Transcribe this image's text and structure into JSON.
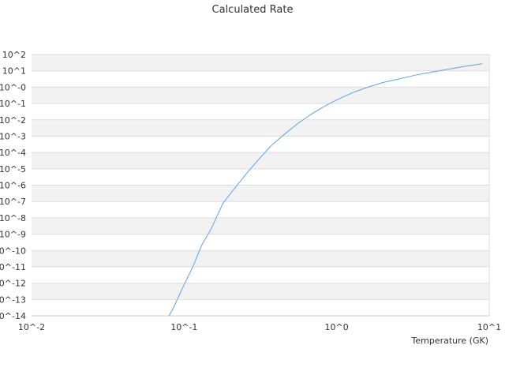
{
  "chart_data": {
    "type": "line",
    "title": "Calculated Rate",
    "xlabel": "Temperature (GK)",
    "ylabel": "",
    "x_scale": "log",
    "y_scale": "log",
    "xlim": [
      0.01,
      10
    ],
    "ylim": [
      1e-14,
      100
    ],
    "x_tick_values": [
      0.01,
      0.1,
      1,
      10
    ],
    "x_tick_labels": [
      "10^-2",
      "10^-1",
      "10^0",
      "10^1"
    ],
    "y_tick_values": [
      100,
      10,
      1,
      0.1,
      0.01,
      0.001,
      0.0001,
      1e-05,
      1e-06,
      1e-07,
      1e-08,
      1e-09,
      1e-10,
      1e-11,
      1e-12,
      1e-13,
      1e-14
    ],
    "y_tick_labels": [
      "10^2",
      "10^1",
      "10^-0",
      "10^-1",
      "10^-2",
      "10^-3",
      "10^-4",
      "10^-5",
      "10^-6",
      "10^-7",
      "10^-8",
      "10^-9",
      "10^-10",
      "10^-11",
      "10^-12",
      "10^-13",
      "10^-14"
    ],
    "grid": "alternating horizontal bands",
    "legend": "none",
    "colors": {
      "line": "#5aa3e8",
      "band": "#f2f2f2",
      "gridline": "#dddddd",
      "axis": "#cccccc"
    },
    "series": [
      {
        "x": [
          0.0797,
          0.085,
          0.095,
          0.105,
          0.115,
          0.13,
          0.15,
          0.18,
          0.21,
          0.26,
          0.31,
          0.37,
          0.45,
          0.55,
          0.67,
          0.8,
          0.95,
          1.1,
          1.3,
          1.6,
          2.0,
          2.6,
          3.3,
          4.3,
          5.5,
          7.0,
          9.0
        ],
        "y": [
          1e-14,
          3e-14,
          3e-13,
          2e-12,
          1.2e-11,
          2e-10,
          2e-09,
          8e-08,
          5e-07,
          6e-06,
          4e-05,
          0.00025,
          0.0012,
          0.0055,
          0.02,
          0.055,
          0.13,
          0.25,
          0.5,
          1.0,
          1.9,
          3.3,
          5.5,
          8.6,
          13,
          19,
          27
        ]
      }
    ]
  }
}
